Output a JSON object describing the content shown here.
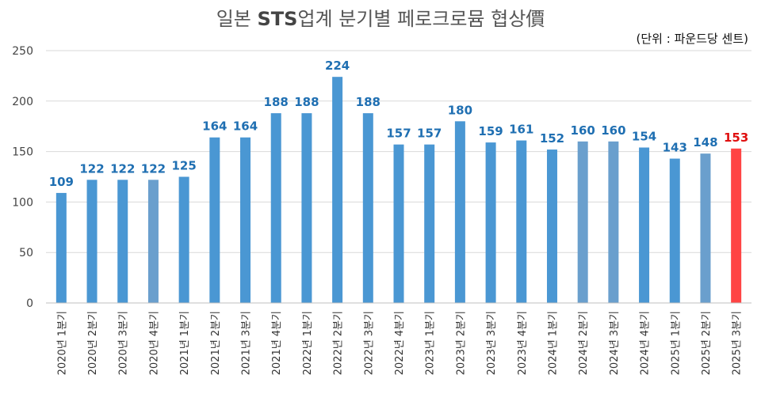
{
  "title_prefix": "일본 ",
  "title_bold": "STS",
  "title_suffix": "업계 분기별 페로크로뮴 협상價",
  "unit_label": "(단위 : 파운드당 센트)",
  "colors": {
    "bar": "#4a97d3",
    "bar_muted": "#6a9fcd",
    "highlight": "#ff4444",
    "label": "#1f6fb2",
    "highlight_label": "#e01010",
    "grid": "#d9d9d9"
  },
  "chart_data": {
    "type": "bar",
    "title": "일본 STS업계 분기별 페로크로뮴 협상價",
    "unit": "(단위 : 파운드당 센트)",
    "ylim": [
      0,
      250
    ],
    "yticks": [
      0,
      50,
      100,
      150,
      200,
      250
    ],
    "grid": true,
    "categories": [
      "2020년 1분기",
      "2020년 2분기",
      "2020년 3분기",
      "2020년 4분기",
      "2021년 1분기",
      "2021년 2분기",
      "2021년 3분기",
      "2021년 4분기",
      "2022년 1분기",
      "2022년 2분기",
      "2022년 3분기",
      "2022년 4분기",
      "2023년 1분기",
      "2023년 2분기",
      "2023년 3분기",
      "2023년 4분기",
      "2024년 1분기",
      "2024년 2분기",
      "2024년 3분기",
      "2024년 4분기",
      "2025년 1분기",
      "2025년 2분기",
      "2025년 3분기"
    ],
    "values": [
      109,
      122,
      122,
      122,
      125,
      164,
      164,
      188,
      188,
      224,
      188,
      157,
      157,
      180,
      159,
      161,
      152,
      160,
      160,
      154,
      143,
      148,
      153
    ],
    "muted_indices": [
      3,
      17,
      18,
      21
    ],
    "highlight_index": 22
  }
}
